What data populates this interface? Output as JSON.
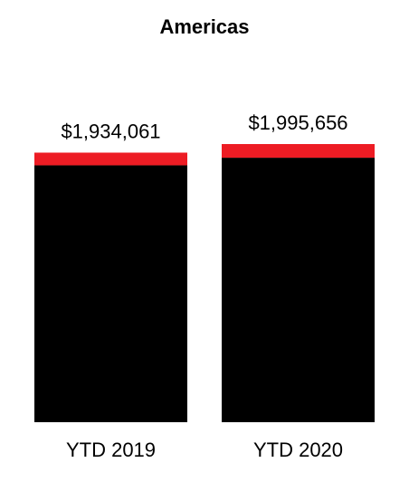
{
  "chart_data": {
    "type": "stacked_bar",
    "title": "Americas",
    "categories": [
      "YTD 2019",
      "YTD 2020"
    ],
    "series": [
      {
        "color": "#000000",
        "values": [
          1843061,
          1897656
        ]
      },
      {
        "color": "#ed1c24",
        "values": [
          91000,
          98000
        ]
      }
    ],
    "totals": [
      1934061,
      1995656
    ],
    "total_labels": [
      "$1,934,061",
      "$1,995,656"
    ]
  }
}
